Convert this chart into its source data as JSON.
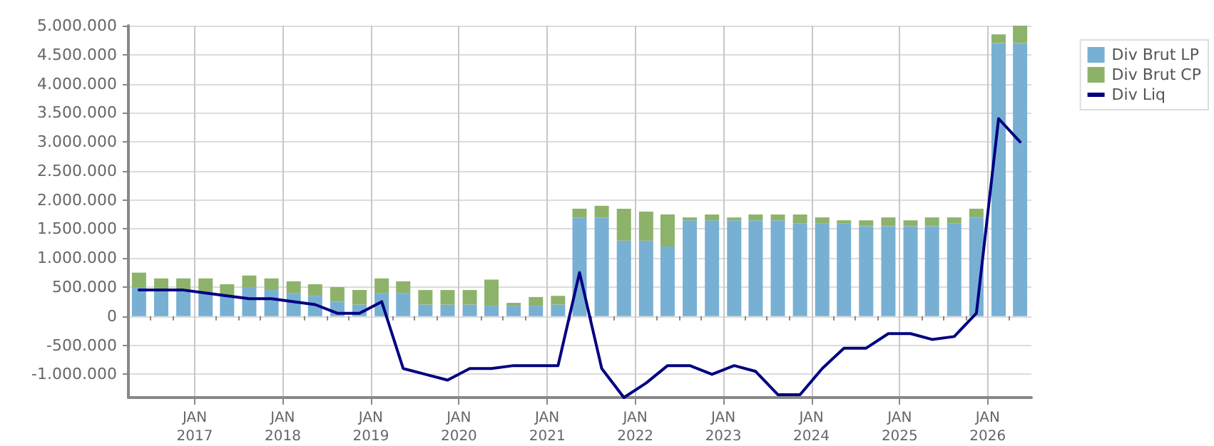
{
  "chart_data": {
    "type": "bar",
    "stacked": true,
    "legend": "top right",
    "grid": true,
    "marker": "none",
    "x": [
      "2016-05-15",
      "2016-08-15",
      "2016-11-15",
      "2017-02-15",
      "2017-05-15",
      "2017-08-15",
      "2017-11-15",
      "2018-02-15",
      "2018-05-15",
      "2018-08-15",
      "2018-11-15",
      "2019-02-15",
      "2019-05-15",
      "2019-08-15",
      "2019-11-15",
      "2020-02-15",
      "2020-05-15",
      "2020-08-15",
      "2020-11-15",
      "2021-02-15",
      "2021-05-15",
      "2021-08-15",
      "2021-11-15",
      "2022-02-15",
      "2022-05-15",
      "2022-08-15",
      "2022-11-15",
      "2023-02-15",
      "2023-05-15",
      "2023-08-15",
      "2023-11-15",
      "2024-02-15",
      "2024-05-15",
      "2024-08-15",
      "2024-11-15",
      "2025-02-15",
      "2025-05-15",
      "2025-08-15",
      "2025-11-15",
      "2026-02-15",
      "2026-05-15"
    ],
    "series": [
      {
        "name": "Div Brut LP",
        "color": "#78b0d4",
        "values": [
          500000,
          450000,
          450000,
          400000,
          350000,
          500000,
          450000,
          400000,
          350000,
          250000,
          200000,
          400000,
          400000,
          200000,
          200000,
          200000,
          180000,
          180000,
          180000,
          200000,
          1700000,
          1700000,
          1300000,
          1300000,
          1200000,
          1650000,
          1650000,
          1650000,
          1650000,
          1650000,
          1600000,
          1600000,
          1600000,
          1550000,
          1550000,
          1550000,
          1550000,
          1600000,
          1700000,
          4700000,
          4700000
        ]
      },
      {
        "name": "Div Brut CP",
        "color": "#8db36a",
        "values": [
          250000,
          200000,
          200000,
          250000,
          200000,
          200000,
          200000,
          200000,
          200000,
          250000,
          250000,
          250000,
          200000,
          250000,
          250000,
          250000,
          450000,
          50000,
          150000,
          150000,
          150000,
          200000,
          550000,
          500000,
          550000,
          50000,
          100000,
          50000,
          100000,
          100000,
          150000,
          100000,
          50000,
          100000,
          150000,
          100000,
          150000,
          100000,
          150000,
          150000,
          300000
        ]
      },
      {
        "name": "Div Liq",
        "type": "line",
        "color": "#000080",
        "line_style": "solid",
        "values": [
          450000,
          450000,
          450000,
          400000,
          350000,
          300000,
          300000,
          250000,
          200000,
          50000,
          50000,
          250000,
          -900000,
          -1000000,
          -1100000,
          -900000,
          -900000,
          -850000,
          -850000,
          -850000,
          750000,
          -900000,
          -1400000,
          -1150000,
          -850000,
          -850000,
          -1000000,
          -850000,
          -950000,
          -1350000,
          -1350000,
          -900000,
          -550000,
          -550000,
          -300000,
          -300000,
          -400000,
          -350000,
          50000,
          3400000,
          3000000
        ]
      }
    ],
    "ylim": [
      -1400000,
      5000000
    ],
    "yticks": [
      {
        "value": -1000000,
        "label": "-1.000.000"
      },
      {
        "value": -500000,
        "label": "-500.000"
      },
      0,
      {
        "value": 500000,
        "label": "500.000"
      },
      {
        "value": 1000000,
        "label": "1.000.000"
      },
      {
        "value": 1500000,
        "label": "1.500.000"
      },
      {
        "value": 2000000,
        "label": "2.000.000"
      },
      {
        "value": 2500000,
        "label": "2.500.000"
      },
      {
        "value": 3000000,
        "label": "3.000.000"
      },
      {
        "value": 3500000,
        "label": "3.500.000"
      },
      {
        "value": 4000000,
        "label": "4.000.000"
      },
      {
        "value": 4500000,
        "label": "4.500.000"
      },
      {
        "value": 5000000,
        "label": "5.000.000"
      }
    ],
    "xlim": [
      "2016-04-01",
      "2026-07-01"
    ],
    "xticks": [
      {
        "value": "2016-07-01",
        "label": null
      },
      {
        "value": "2016-10-01",
        "label": null
      },
      {
        "value": "2017-01-01",
        "label": "JAN\n2017"
      },
      {
        "value": "2017-04-01",
        "label": null
      },
      {
        "value": "2017-07-01",
        "label": null
      },
      {
        "value": "2017-10-01",
        "label": null
      },
      {
        "value": "2018-01-01",
        "label": "JAN\n2018"
      },
      {
        "value": "2018-04-01",
        "label": null
      },
      {
        "value": "2018-07-01",
        "label": null
      },
      {
        "value": "2018-10-01",
        "label": null
      },
      {
        "value": "2019-01-01",
        "label": "JAN\n2019"
      },
      {
        "value": "2019-04-01",
        "label": null
      },
      {
        "value": "2019-07-01",
        "label": null
      },
      {
        "value": "2019-10-01",
        "label": null
      },
      {
        "value": "2020-01-01",
        "label": "JAN\n2020"
      },
      {
        "value": "2020-04-01",
        "label": null
      },
      {
        "value": "2020-07-01",
        "label": null
      },
      {
        "value": "2020-10-01",
        "label": null
      },
      {
        "value": "2021-01-01",
        "label": "JAN\n2021"
      },
      {
        "value": "2021-04-01",
        "label": null
      },
      {
        "value": "2021-07-01",
        "label": null
      },
      {
        "value": "2021-10-01",
        "label": null
      },
      {
        "value": "2022-01-01",
        "label": "JAN\n2022"
      },
      {
        "value": "2022-04-01",
        "label": null
      },
      {
        "value": "2022-07-01",
        "label": null
      },
      {
        "value": "2022-10-01",
        "label": null
      },
      {
        "value": "2023-01-01",
        "label": "JAN\n2023"
      },
      {
        "value": "2023-04-01",
        "label": null
      },
      {
        "value": "2023-07-01",
        "label": null
      },
      {
        "value": "2023-10-01",
        "label": null
      },
      {
        "value": "2024-01-01",
        "label": "JAN\n2024"
      },
      {
        "value": "2024-04-01",
        "label": null
      },
      {
        "value": "2024-07-01",
        "label": null
      },
      {
        "value": "2024-10-01",
        "label": null
      },
      {
        "value": "2025-01-01",
        "label": "JAN\n2025"
      },
      {
        "value": "2025-04-01",
        "label": null
      },
      {
        "value": "2025-07-01",
        "label": null
      },
      {
        "value": "2025-10-01",
        "label": null
      },
      {
        "value": "2026-01-01",
        "label": "JAN\n2026"
      },
      {
        "value": "2026-04-01",
        "label": null
      }
    ]
  }
}
